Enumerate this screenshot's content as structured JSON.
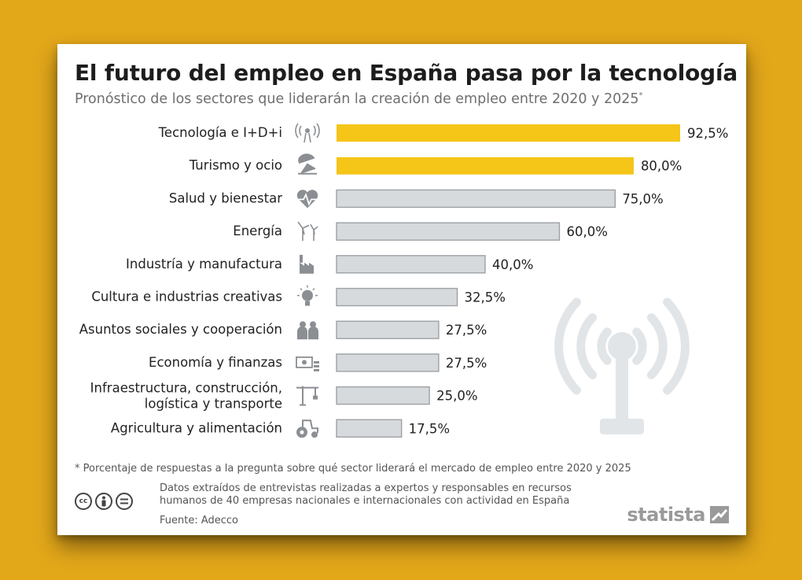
{
  "header": {
    "title": "El futuro del empleo en España pasa por la tecnología",
    "subtitle": "Pronóstico de los sectores que liderarán la creación de empleo entre 2020 y 2025",
    "subtitle_mark": "*"
  },
  "chart_data": {
    "type": "bar",
    "orientation": "horizontal",
    "categories": [
      "Tecnología e I+D+i",
      "Turismo y ocio",
      "Salud y bienestar",
      "Energía",
      "Industría y manufactura",
      "Cultura e industrias creativas",
      "Asuntos sociales y cooperación",
      "Economía y finanzas",
      "Infraestructura, construcción,\nlogística y transporte",
      "Agricultura y alimentación"
    ],
    "values": [
      92.5,
      80.0,
      75.0,
      60.0,
      40.0,
      32.5,
      27.5,
      27.5,
      25.0,
      17.5
    ],
    "value_labels": [
      "92,5%",
      "80,0%",
      "75,0%",
      "60,0%",
      "40,0%",
      "32,5%",
      "27,5%",
      "27,5%",
      "25,0%",
      "17,5%"
    ],
    "icons": [
      "antenna-icon",
      "beach-chair-icon",
      "heartbeat-icon",
      "wind-turbine-icon",
      "factory-icon",
      "lightbulb-icon",
      "people-icon",
      "money-icon",
      "crane-icon",
      "tractor-icon"
    ],
    "highlight_color": "#F5C518",
    "default_color": "#D7DADD",
    "bar_border_color": "#9DA1A5",
    "highlighted_indices": [
      0,
      1
    ],
    "xlim": [
      0,
      100
    ],
    "unit": "%"
  },
  "footer": {
    "footnote": "* Porcentaje de respuestas a la pregunta sobre qué sector liderará el mercado de empleo entre 2020 y 2025",
    "source_note": "Datos extraídos de entrevistas realizadas a expertos y responsables en recursos humanos de 40 empresas nacionales e internacionales con actividad en España",
    "source": "Fuente: Adecco",
    "brand": "statista",
    "license_icons": [
      "cc",
      "by",
      "nd"
    ]
  }
}
